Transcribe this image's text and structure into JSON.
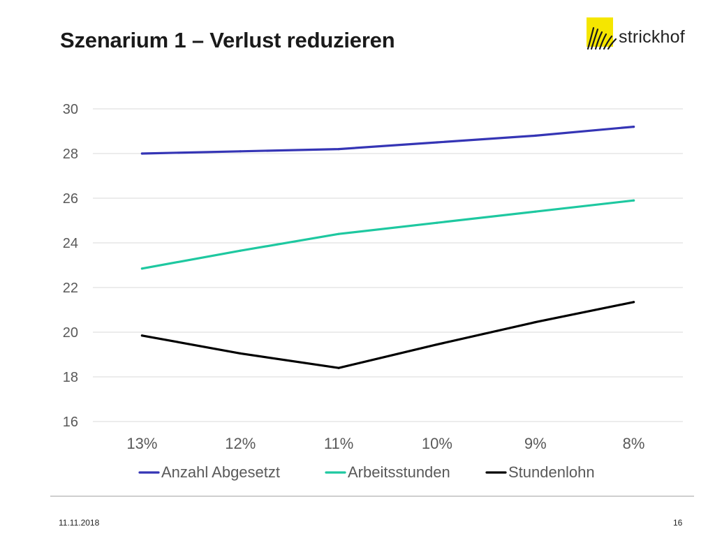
{
  "slide": {
    "title": "Szenarium 1 – Verlust reduzieren",
    "logo_text": "strickhof",
    "date": "11.11.2018",
    "page_number": "16"
  },
  "colors": {
    "logo_yellow": "#f5e600",
    "grid": "#d9d9d9",
    "tick_text": "#595959"
  },
  "chart_data": {
    "type": "line",
    "categories": [
      "13%",
      "12%",
      "11%",
      "10%",
      "9%",
      "8%"
    ],
    "ylim": [
      16,
      30
    ],
    "yticks": [
      16,
      18,
      20,
      22,
      24,
      26,
      28,
      30
    ],
    "grid": true,
    "legend_position": "bottom",
    "xlabel": "",
    "ylabel": "",
    "series": [
      {
        "name": "Anzahl Abgesetzt",
        "color": "#3535b5",
        "values": [
          28.0,
          28.1,
          28.2,
          28.5,
          28.8,
          29.2
        ]
      },
      {
        "name": "Arbeitsstunden",
        "color": "#1ec8a0",
        "values": [
          22.85,
          23.65,
          24.4,
          24.9,
          25.4,
          25.9
        ]
      },
      {
        "name": "Stundenlohn",
        "color": "#000000",
        "values": [
          19.85,
          19.05,
          18.4,
          19.45,
          20.45,
          21.35
        ]
      }
    ]
  }
}
